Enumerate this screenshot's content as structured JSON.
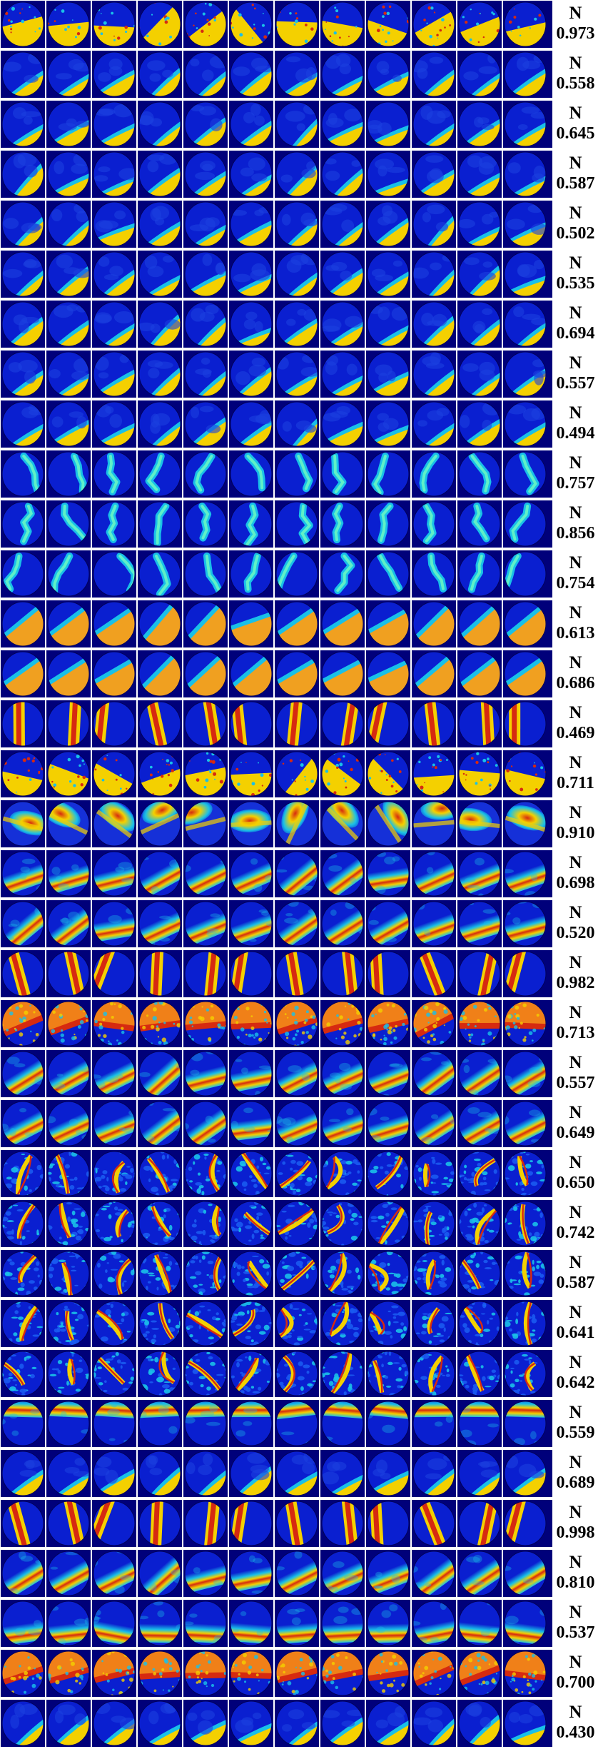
{
  "palette": {
    "background": "#00007a",
    "low": "#0a1fd0",
    "mid": "#19c0e8",
    "high": "#f4d000",
    "peak": "#d62a10"
  },
  "rows": [
    {
      "prefix": "N",
      "value": "0.973",
      "pattern": "speckle-edge",
      "variant": 0
    },
    {
      "prefix": "N",
      "value": "0.558",
      "pattern": "thin-arc",
      "variant": 1
    },
    {
      "prefix": "N",
      "value": "0.645",
      "pattern": "thin-arc",
      "variant": 2
    },
    {
      "prefix": "N",
      "value": "0.587",
      "pattern": "thin-arc",
      "variant": 3
    },
    {
      "prefix": "N",
      "value": "0.502",
      "pattern": "thin-arc",
      "variant": 4
    },
    {
      "prefix": "N",
      "value": "0.535",
      "pattern": "thin-arc",
      "variant": 5
    },
    {
      "prefix": "N",
      "value": "0.694",
      "pattern": "thin-arc",
      "variant": 6
    },
    {
      "prefix": "N",
      "value": "0.557",
      "pattern": "thin-arc",
      "variant": 7
    },
    {
      "prefix": "N",
      "value": "0.494",
      "pattern": "thin-arc",
      "variant": 8
    },
    {
      "prefix": "N",
      "value": "0.757",
      "pattern": "blob",
      "variant": 0
    },
    {
      "prefix": "N",
      "value": "0.856",
      "pattern": "blob",
      "variant": 1
    },
    {
      "prefix": "N",
      "value": "0.754",
      "pattern": "blob",
      "variant": 2
    },
    {
      "prefix": "N",
      "value": "0.613",
      "pattern": "half-fill",
      "variant": 0
    },
    {
      "prefix": "N",
      "value": "0.686",
      "pattern": "half-fill",
      "variant": 1
    },
    {
      "prefix": "N",
      "value": "0.469",
      "pattern": "vertical-band",
      "variant": 0
    },
    {
      "prefix": "N",
      "value": "0.711",
      "pattern": "speckle-edge",
      "variant": 1
    },
    {
      "prefix": "N",
      "value": "0.910",
      "pattern": "hot-corner",
      "variant": 0
    },
    {
      "prefix": "N",
      "value": "0.698",
      "pattern": "diagonal-band",
      "variant": 0
    },
    {
      "prefix": "N",
      "value": "0.520",
      "pattern": "diagonal-band",
      "variant": 1
    },
    {
      "prefix": "N",
      "value": "0.982",
      "pattern": "vertical-band",
      "variant": 1
    },
    {
      "prefix": "N",
      "value": "0.713",
      "pattern": "textured-band",
      "variant": 0
    },
    {
      "prefix": "N",
      "value": "0.557",
      "pattern": "diagonal-band",
      "variant": 2
    },
    {
      "prefix": "N",
      "value": "0.649",
      "pattern": "diagonal-band",
      "variant": 3
    },
    {
      "prefix": "N",
      "value": "0.650",
      "pattern": "noisy",
      "variant": 0
    },
    {
      "prefix": "N",
      "value": "0.742",
      "pattern": "noisy",
      "variant": 1
    },
    {
      "prefix": "N",
      "value": "0.587",
      "pattern": "noisy",
      "variant": 2
    },
    {
      "prefix": "N",
      "value": "0.641",
      "pattern": "noisy",
      "variant": 3
    },
    {
      "prefix": "N",
      "value": "0.642",
      "pattern": "noisy",
      "variant": 4
    },
    {
      "prefix": "N",
      "value": "0.559",
      "pattern": "top-band",
      "variant": 0
    },
    {
      "prefix": "N",
      "value": "0.689",
      "pattern": "thin-arc",
      "variant": 9
    },
    {
      "prefix": "N",
      "value": "0.998",
      "pattern": "vertical-band",
      "variant": 2
    },
    {
      "prefix": "N",
      "value": "0.810",
      "pattern": "diagonal-band",
      "variant": 4
    },
    {
      "prefix": "N",
      "value": "0.537",
      "pattern": "bottom-band",
      "variant": 0
    },
    {
      "prefix": "N",
      "value": "0.700",
      "pattern": "textured-band",
      "variant": 1
    },
    {
      "prefix": "N",
      "value": "0.430",
      "pattern": "bottom-arc",
      "variant": 0
    }
  ]
}
